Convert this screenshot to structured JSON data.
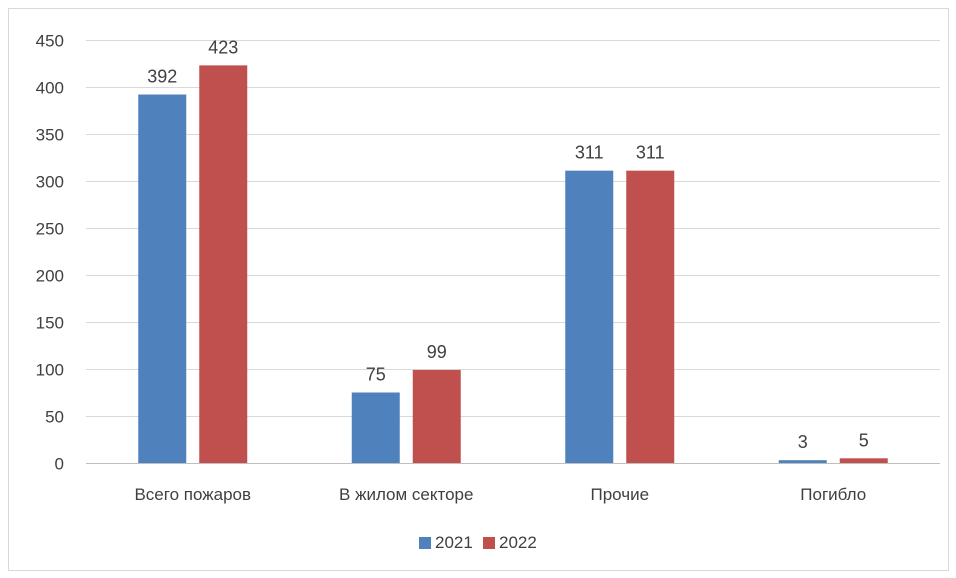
{
  "chart_data": {
    "type": "bar",
    "categories": [
      "Всего пожаров",
      "В жилом секторе",
      "Прочие",
      "Погибло"
    ],
    "series": [
      {
        "name": "2021",
        "values": [
          392,
          75,
          311,
          3
        ],
        "color": "#4f81bd"
      },
      {
        "name": "2022",
        "values": [
          423,
          99,
          311,
          5
        ],
        "color": "#c0504d"
      }
    ],
    "title": "",
    "xlabel": "",
    "ylabel": "",
    "ylim": [
      0,
      450
    ],
    "yticks": [
      0,
      50,
      100,
      150,
      200,
      250,
      300,
      350,
      400,
      450
    ],
    "grid": true,
    "legend_position": "bottom",
    "data_labels": true
  }
}
